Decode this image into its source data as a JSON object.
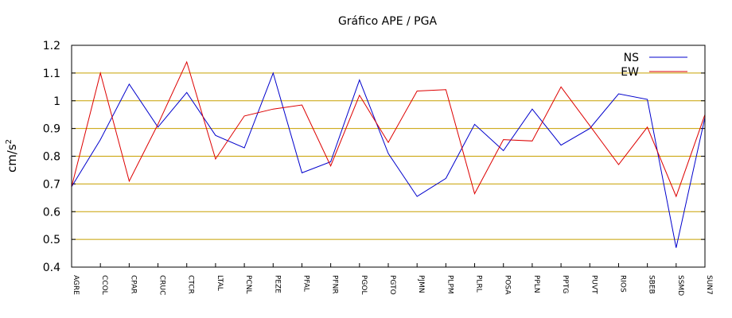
{
  "chart_data": {
    "type": "line",
    "title": "Gráfico  APE / PGA",
    "ylabel_base": "cm/s",
    "ylabel_exp": "2",
    "xlabel": "",
    "ylim": [
      0.4,
      1.2
    ],
    "yticks": [
      "0.4",
      "0.5",
      "0.6",
      "0.7",
      "0.8",
      "0.9",
      "1",
      "1.1",
      "1.2"
    ],
    "grid": true,
    "legend_position": "top-right",
    "categories": [
      "AGRE",
      "CCOL",
      "CPAR",
      "CRUC",
      "CTCR",
      "LTAL",
      "PCNL",
      "PEZE",
      "PFAL",
      "PFNR",
      "PGOL",
      "PGTO",
      "PJMN",
      "PLPM",
      "PLRL",
      "POSA",
      "PPLN",
      "PPTG",
      "PUVT",
      "RIOS",
      "SBEB",
      "SSMD",
      "SUN7"
    ],
    "series": [
      {
        "name": "NS",
        "color": "#0000cc",
        "values": [
          0.69,
          0.86,
          1.06,
          0.905,
          1.03,
          0.875,
          0.83,
          1.1,
          0.74,
          0.78,
          1.075,
          0.81,
          0.655,
          0.72,
          0.915,
          0.82,
          0.97,
          0.84,
          0.9,
          1.025,
          1.005,
          0.47,
          0.94
        ]
      },
      {
        "name": "EW",
        "color": "#dd0000",
        "values": [
          0.69,
          1.1,
          0.71,
          0.915,
          1.14,
          0.79,
          0.945,
          0.97,
          0.985,
          0.765,
          1.02,
          0.85,
          1.035,
          1.04,
          0.665,
          0.86,
          0.855,
          1.05,
          0.91,
          0.77,
          0.905,
          0.655,
          0.95
        ]
      }
    ],
    "colors": {
      "grid": "#c8a000",
      "axis": "#000000",
      "background": "#ffffff"
    }
  }
}
